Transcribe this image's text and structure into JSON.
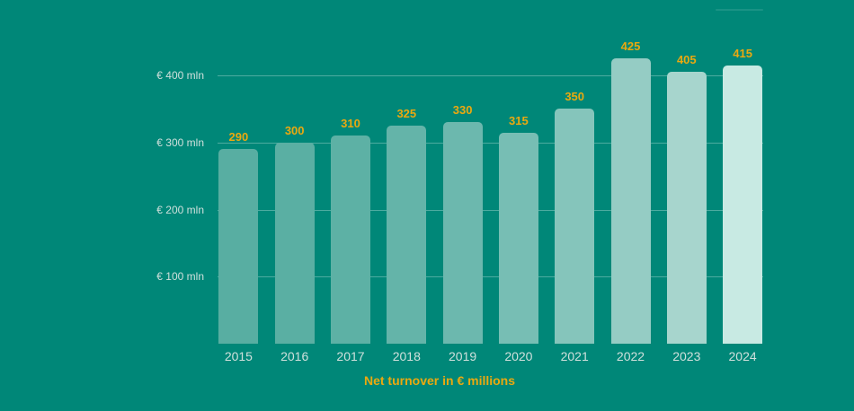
{
  "colors": {
    "background": "#008778",
    "accent_gold": "#EBA90F",
    "axis_label": "#CFE0DC",
    "grid_line": "rgba(255,255,255,0.30)"
  },
  "chart_data": {
    "type": "bar",
    "title": "Net turnover in € millions",
    "categories": [
      "2015",
      "2016",
      "2017",
      "2018",
      "2019",
      "2020",
      "2021",
      "2022",
      "2023",
      "2024"
    ],
    "values": [
      290,
      300,
      310,
      325,
      330,
      315,
      350,
      425,
      405,
      415
    ],
    "bar_colors": [
      "#58AEA2",
      "#5AAFA3",
      "#5DB1A5",
      "#64B4A9",
      "#6CB8AE",
      "#77BEB4",
      "#85C5BB",
      "#95CCC4",
      "#A7D5CD",
      "#C8EAE3"
    ],
    "value_labels": [
      "290",
      "300",
      "310",
      "325",
      "330",
      "315",
      "350",
      "425",
      "405",
      "415"
    ],
    "y_ticks": [
      {
        "value": 100,
        "label": "€ 100 mln"
      },
      {
        "value": 200,
        "label": "€ 200 mln"
      },
      {
        "value": 300,
        "label": "€ 300 mln"
      },
      {
        "value": 400,
        "label": "€ 400 mln"
      }
    ],
    "ylim": [
      0,
      430
    ],
    "grid": true,
    "legend_position": "none"
  }
}
